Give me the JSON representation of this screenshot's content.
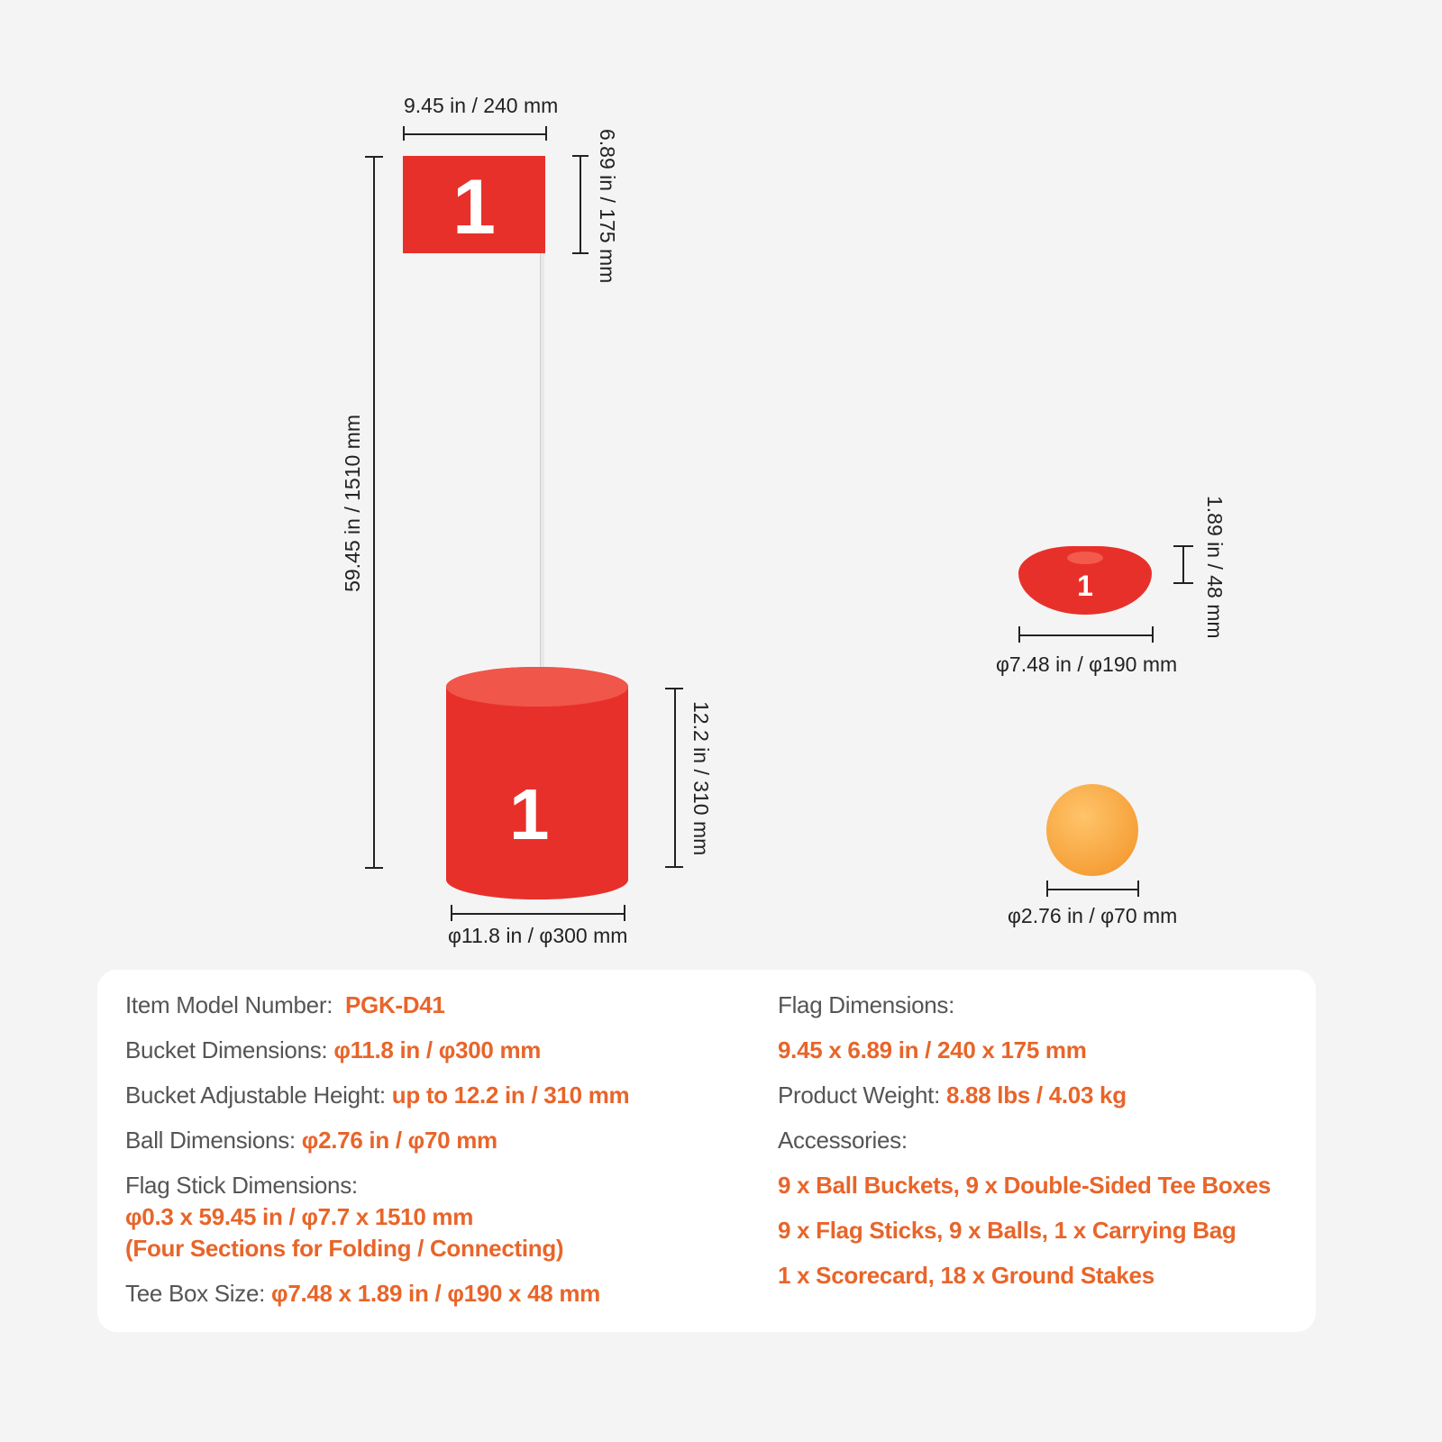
{
  "colors": {
    "accent": "#e8652a",
    "product_red": "#e8302a",
    "background": "#f4f4f4"
  },
  "dimensions": {
    "flag_width": "9.45 in / 240 mm",
    "flag_height": "6.89 in / 175 mm",
    "stick_height": "59.45 in / 1510 mm",
    "bucket_height": "12.2 in / 310 mm",
    "bucket_diameter": "φ11.8 in / φ300 mm",
    "tee_height": "1.89 in / 48 mm",
    "tee_diameter": "φ7.48 in / φ190 mm",
    "ball_diameter": "φ2.76 in / φ70 mm"
  },
  "product_labels": {
    "flag_number": "1",
    "tee_number": "1",
    "bucket_number": "1"
  },
  "specs": {
    "left": [
      {
        "label": "Item Model Number:",
        "value": "PGK-D41"
      },
      {
        "label": "Bucket Dimensions:",
        "value": "φ11.8 in / φ300 mm"
      },
      {
        "label": "Bucket Adjustable Height:",
        "value": "up to 12.2 in / 310 mm"
      },
      {
        "label": "Ball Dimensions:",
        "value": "φ2.76 in / φ70 mm"
      },
      {
        "label": "Flag Stick Dimensions:",
        "value": "φ0.3 x 59.45 in / φ7.7 x 1510 mm",
        "value2": "(Four Sections for Folding / Connecting)"
      },
      {
        "label": "Tee Box Size:",
        "value": "φ7.48 x 1.89 in / φ190 x 48 mm"
      }
    ],
    "right": [
      {
        "label": "Flag Dimensions:",
        "value": "9.45 x 6.89 in / 240 x 175 mm"
      },
      {
        "label": "Product Weight:",
        "value": "8.88 lbs / 4.03 kg"
      },
      {
        "label": "Accessories:",
        "items": [
          "9 x Ball Buckets, 9 x Double-Sided Tee Boxes",
          "9 x Flag Sticks, 9 x Balls, 1 x Carrying Bag",
          "1 x Scorecard, 18 x Ground Stakes"
        ]
      }
    ]
  }
}
